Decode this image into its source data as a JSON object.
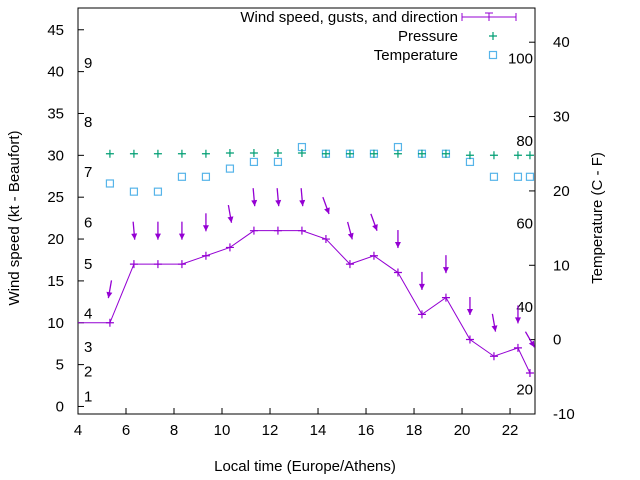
{
  "chart_data": {
    "type": "line",
    "xlabel": "Local time (Europe/Athens)",
    "ylabel": "Wind speed (kt - Beaufort)",
    "y2label": "Temperature (C - F)",
    "xlim": [
      4,
      23.04
    ],
    "ylim": [
      -0.9,
      47.6
    ],
    "y2lim": [
      -10,
      44.6
    ],
    "xticks": [
      4,
      6,
      8,
      10,
      12,
      14,
      16,
      18,
      20,
      22
    ],
    "yticks": [
      0,
      5,
      10,
      15,
      20,
      25,
      30,
      35,
      40,
      45
    ],
    "y2ticks": [
      -10,
      0,
      10,
      20,
      30,
      40
    ],
    "beaufort_labels": [
      {
        "label": "1",
        "y": 1.2
      },
      {
        "label": "2",
        "y": 4.2
      },
      {
        "label": "3",
        "y": 7.1
      },
      {
        "label": "4",
        "y": 11.1
      },
      {
        "label": "5",
        "y": 17
      },
      {
        "label": "6",
        "y": 22
      },
      {
        "label": "7",
        "y": 28
      },
      {
        "label": "8",
        "y": 34
      },
      {
        "label": "9",
        "y": 41
      }
    ],
    "fahrenheit_labels": [
      {
        "label": "20",
        "y2": -6.7
      },
      {
        "label": "40",
        "y2": 4.4
      },
      {
        "label": "60",
        "y2": 15.6
      },
      {
        "label": "80",
        "y2": 26.7
      },
      {
        "label": "100",
        "y2": 37.8
      }
    ],
    "legend": [
      "Wind speed, gusts, and direction",
      "Pressure",
      "Temperature"
    ],
    "legend_position": "top-right",
    "colors": {
      "wind": "#9400d3",
      "pressure": "#009e73",
      "temperature": "#56b4e9"
    },
    "x": [
      5.33,
      6.33,
      7.33,
      8.33,
      9.33,
      10.33,
      11.33,
      12.33,
      13.33,
      14.33,
      15.33,
      16.33,
      17.33,
      18.33,
      19.33,
      20.33,
      21.33,
      22.33,
      22.83
    ],
    "wind_speed": [
      10,
      17,
      17,
      17,
      18,
      19,
      21,
      21,
      21,
      20,
      17,
      18,
      16,
      11,
      13,
      8,
      6,
      7,
      4
    ],
    "wind_start": {
      "x": 4,
      "y": 10
    },
    "gusts": [
      14,
      21,
      21,
      21,
      22,
      23,
      25,
      25,
      25,
      24,
      21,
      22,
      20,
      15,
      17,
      12,
      10,
      11,
      8
    ],
    "gust_direction_deg": [
      10,
      355,
      0,
      0,
      0,
      350,
      355,
      355,
      355,
      340,
      345,
      340,
      0,
      0,
      0,
      0,
      350,
      0,
      330
    ],
    "pressure": [
      25,
      25,
      25,
      25,
      25,
      25.1,
      25.1,
      25.1,
      25.1,
      25,
      25,
      25,
      25,
      25,
      25,
      24.8,
      24.8,
      24.8,
      24.8
    ],
    "temperature": [
      21,
      19.9,
      19.9,
      21.9,
      21.9,
      23,
      23.9,
      23.9,
      25.9,
      25,
      25,
      25,
      25.9,
      25,
      25,
      23.9,
      21.9,
      21.9,
      21.9
    ]
  }
}
